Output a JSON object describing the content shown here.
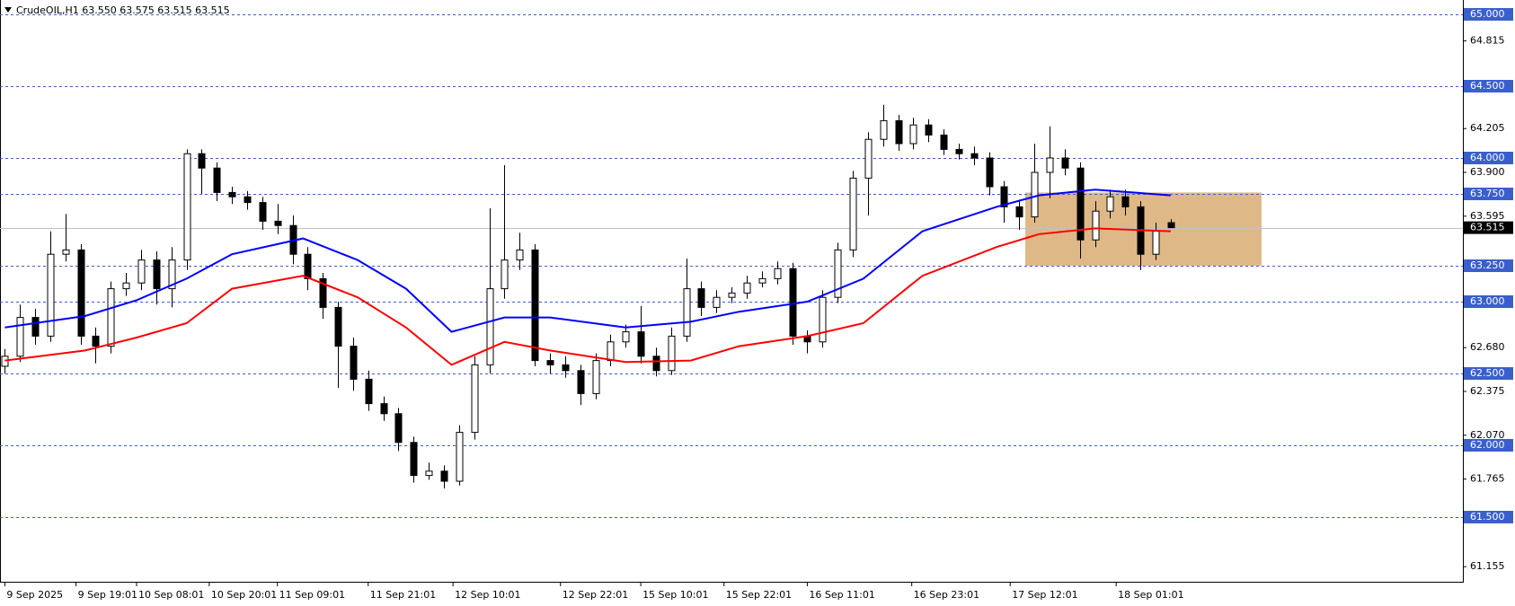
{
  "chart_data": {
    "type": "candlestick",
    "title": "CrudeOIL,H1  63.550 63.575 63.515 63.515",
    "open": [
      62.55,
      62.62,
      62.89,
      62.76,
      63.33,
      63.36,
      62.76,
      62.69,
      63.09,
      63.13,
      63.29,
      63.09,
      63.29,
      64.03,
      63.93,
      63.76,
      63.73,
      63.69,
      63.56,
      63.53,
      63.33,
      63.16,
      62.96,
      62.69,
      62.46,
      62.29,
      62.22,
      62.02,
      61.79,
      61.82,
      61.75,
      62.09,
      62.56,
      63.09,
      63.29,
      63.36,
      62.59,
      62.56,
      62.52,
      62.36,
      62.59,
      62.72,
      62.79,
      62.62,
      62.52,
      62.76,
      63.09,
      62.96,
      63.03,
      63.06,
      63.13,
      63.16,
      63.23,
      62.76,
      62.72,
      63.03,
      63.36,
      63.86,
      64.13,
      64.26,
      64.1,
      64.23,
      64.16,
      64.06,
      64.03,
      64.0,
      63.8,
      63.66,
      63.59,
      63.9,
      64.0,
      63.93,
      63.43,
      63.63,
      63.73,
      63.66,
      63.33,
      63.55
    ],
    "high": [
      62.67,
      62.98,
      62.95,
      63.49,
      63.61,
      63.4,
      62.82,
      63.14,
      63.2,
      63.36,
      63.35,
      63.38,
      64.06,
      64.06,
      63.97,
      63.8,
      63.77,
      63.73,
      63.68,
      63.6,
      63.38,
      63.2,
      63.0,
      62.75,
      62.52,
      62.34,
      62.26,
      62.06,
      61.88,
      61.86,
      62.14,
      62.62,
      63.65,
      63.95,
      63.48,
      63.4,
      62.64,
      62.62,
      62.56,
      62.64,
      62.77,
      62.84,
      62.97,
      62.68,
      62.82,
      63.3,
      63.14,
      63.08,
      63.1,
      63.18,
      63.21,
      63.28,
      63.27,
      62.8,
      63.08,
      63.41,
      63.91,
      64.18,
      64.37,
      64.3,
      64.28,
      64.27,
      64.2,
      64.1,
      64.08,
      64.04,
      63.84,
      63.71,
      64.1,
      64.22,
      64.06,
      63.97,
      63.7,
      63.78,
      63.78,
      63.7,
      63.55,
      63.575
    ],
    "low": [
      62.5,
      62.58,
      62.7,
      62.72,
      63.28,
      62.7,
      62.57,
      62.64,
      63.04,
      63.08,
      62.98,
      62.96,
      63.22,
      63.75,
      63.7,
      63.68,
      63.64,
      63.5,
      63.47,
      63.26,
      63.08,
      62.88,
      62.4,
      62.38,
      62.24,
      62.17,
      61.96,
      61.74,
      61.76,
      61.7,
      61.72,
      62.04,
      62.5,
      63.02,
      63.22,
      62.55,
      62.5,
      62.47,
      62.28,
      62.32,
      62.55,
      62.68,
      62.57,
      62.48,
      62.49,
      62.72,
      62.9,
      62.92,
      62.99,
      63.02,
      63.1,
      63.12,
      62.7,
      62.64,
      62.68,
      62.99,
      63.31,
      63.6,
      64.08,
      64.05,
      64.06,
      64.11,
      64.02,
      63.99,
      63.95,
      63.74,
      63.55,
      63.5,
      63.55,
      63.72,
      63.88,
      63.3,
      63.38,
      63.58,
      63.6,
      63.22,
      63.29,
      63.515
    ],
    "close": [
      62.62,
      62.89,
      62.76,
      63.33,
      63.36,
      62.76,
      62.69,
      63.09,
      63.13,
      63.29,
      63.09,
      63.29,
      64.03,
      63.93,
      63.76,
      63.73,
      63.69,
      63.56,
      63.53,
      63.33,
      63.16,
      62.96,
      62.69,
      62.46,
      62.29,
      62.22,
      62.02,
      61.79,
      61.82,
      61.75,
      62.09,
      62.56,
      63.09,
      63.29,
      63.36,
      62.59,
      62.56,
      62.52,
      62.36,
      62.59,
      62.72,
      62.79,
      62.62,
      62.52,
      62.76,
      63.09,
      62.96,
      63.03,
      63.06,
      63.13,
      63.16,
      63.23,
      62.76,
      62.72,
      63.03,
      63.36,
      63.86,
      64.13,
      64.26,
      64.1,
      64.23,
      64.16,
      64.06,
      64.03,
      64.0,
      63.8,
      63.66,
      63.59,
      63.9,
      64.0,
      63.93,
      63.43,
      63.63,
      63.73,
      63.66,
      63.33,
      63.49,
      63.515
    ],
    "lines": [
      {
        "color": "#0000ff",
        "x": [
          0,
          5.3,
          8.7,
          12,
          15,
          19.7,
          23.3,
          26.5,
          29.5,
          33,
          36,
          41,
          45.3,
          48.5,
          53,
          56.7,
          60.6,
          65.5,
          68.3,
          72,
          77
        ],
        "values": [
          62.82,
          62.9,
          63.01,
          63.16,
          63.33,
          63.44,
          63.29,
          63.09,
          62.79,
          62.89,
          62.89,
          62.82,
          62.86,
          62.93,
          63.0,
          63.16,
          63.49,
          63.66,
          63.74,
          63.78,
          63.74
        ]
      },
      {
        "color": "#ff0000",
        "x": [
          0,
          5.3,
          8.7,
          12,
          15,
          19.7,
          23.3,
          26.5,
          29.5,
          33,
          36,
          41,
          45.3,
          48.5,
          53,
          56.7,
          60.6,
          65.5,
          68.3,
          72,
          77
        ],
        "values": [
          62.59,
          62.66,
          62.75,
          62.85,
          63.09,
          63.18,
          63.03,
          62.82,
          62.56,
          62.72,
          62.66,
          62.58,
          62.59,
          62.69,
          62.76,
          62.85,
          63.18,
          63.38,
          63.47,
          63.51,
          63.49
        ]
      }
    ],
    "zone": {
      "x": [
        67.4,
        83
      ],
      "y": [
        63.25,
        63.76
      ],
      "color": "#deb887"
    },
    "xlim": [
      -0.32,
      96.3
    ],
    "ylim": [
      61.05,
      65.1
    ],
    "xticks": [
      {
        "value": 0,
        "label": "9 Sep 2025"
      },
      {
        "value": 4.7,
        "label": "9 Sep 19:01"
      },
      {
        "value": 8.7,
        "label": "10 Sep 08:01"
      },
      {
        "value": 13.5,
        "label": "10 Sep 20:01"
      },
      {
        "value": 18,
        "label": "11 Sep 09:01"
      },
      {
        "value": 24,
        "label": "11 Sep 21:01"
      },
      {
        "value": 29.6,
        "label": "12 Sep 10:01"
      },
      {
        "value": 36.7,
        "label": "12 Sep 22:01"
      },
      {
        "value": 42,
        "label": "15 Sep 10:01"
      },
      {
        "value": 47.5,
        "label": "15 Sep 22:01"
      },
      {
        "value": 53,
        "label": "16 Sep 11:01"
      },
      {
        "value": 59.9,
        "label": "16 Sep 23:01"
      },
      {
        "value": 66.4,
        "label": "17 Sep 12:01"
      },
      {
        "value": 73.4,
        "label": "18 Sep 01:01"
      }
    ],
    "yticks": [
      64.815,
      64.205,
      {
        "value": 63.9,
        "label": "63.900"
      },
      63.595,
      {
        "value": 62.68,
        "label": "62.680"
      },
      62.375,
      {
        "value": 62.07,
        "label": "62.070"
      },
      61.765,
      61.155
    ],
    "levels": [
      {
        "value": 65,
        "label": "65.000"
      },
      {
        "value": 64.5,
        "label": "64.500"
      },
      {
        "value": 64,
        "label": "64.000"
      },
      {
        "value": 63.75,
        "label": "63.750"
      },
      {
        "value": 63.25,
        "label": "63.250"
      },
      {
        "value": 63,
        "label": "63.000"
      },
      {
        "value": 62.5,
        "label": "62.500"
      },
      {
        "value": 62,
        "label": "62.000"
      },
      {
        "value": 61.5,
        "label": "61.500"
      }
    ],
    "level_color": "#3a5fcd",
    "last_price": {
      "value": 63.515,
      "label": "63.515"
    },
    "up_color": "#ffffff",
    "down_color": "#000000"
  }
}
